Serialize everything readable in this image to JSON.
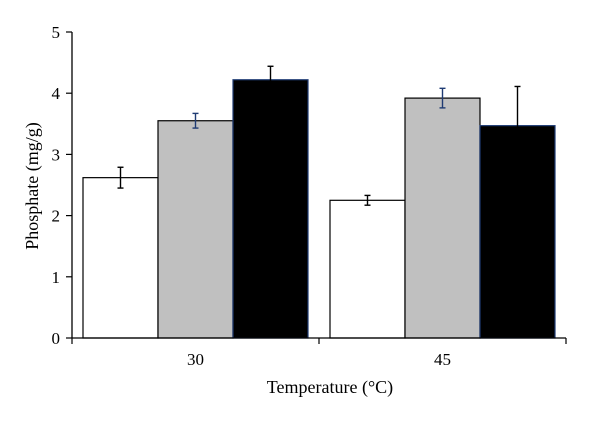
{
  "chart_data": {
    "type": "bar",
    "title": "",
    "xlabel": "Temperature (°C)",
    "ylabel": "Phosphate (mg/g)",
    "ylim": [
      0,
      5
    ],
    "yticks": [
      0,
      1,
      2,
      3,
      4,
      5
    ],
    "grid": false,
    "legend": "none",
    "categories": [
      "30",
      "45"
    ],
    "series": [
      {
        "fill": "#ffffff",
        "stroke": "#000000",
        "errorbar_color": "#000000",
        "values": [
          2.62,
          2.25
        ],
        "errors": [
          0.17,
          0.08
        ]
      },
      {
        "fill": "#c0c0c0",
        "stroke": "#000000",
        "errorbar_color": "#1f3b73",
        "values": [
          3.55,
          3.92
        ],
        "errors": [
          0.12,
          0.16
        ]
      },
      {
        "fill": "#000000",
        "stroke": "#1f3b73",
        "errorbar_color": "#000000",
        "values": [
          4.22,
          3.47
        ],
        "errors": [
          0.22,
          0.64
        ]
      }
    ]
  }
}
